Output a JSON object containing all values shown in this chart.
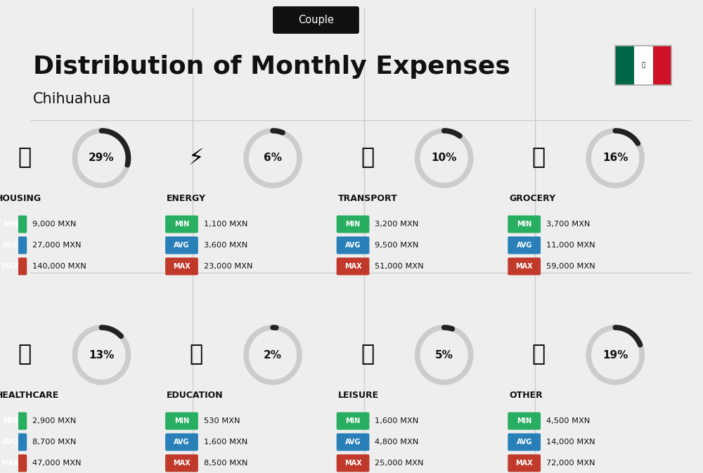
{
  "title": "Distribution of Monthly Expenses",
  "subtitle": "Chihuahua",
  "badge": "Couple",
  "bg_color": "#eeeeee",
  "categories": [
    {
      "name": "HOUSING",
      "pct": 29,
      "min": "9,000 MXN",
      "avg": "27,000 MXN",
      "max": "140,000 MXN",
      "col": 0,
      "row": 0
    },
    {
      "name": "ENERGY",
      "pct": 6,
      "min": "1,100 MXN",
      "avg": "3,600 MXN",
      "max": "23,000 MXN",
      "col": 1,
      "row": 0
    },
    {
      "name": "TRANSPORT",
      "pct": 10,
      "min": "3,200 MXN",
      "avg": "9,500 MXN",
      "max": "51,000 MXN",
      "col": 2,
      "row": 0
    },
    {
      "name": "GROCERY",
      "pct": 16,
      "min": "3,700 MXN",
      "avg": "11,000 MXN",
      "max": "59,000 MXN",
      "col": 3,
      "row": 0
    },
    {
      "name": "HEALTHCARE",
      "pct": 13,
      "min": "2,900 MXN",
      "avg": "8,700 MXN",
      "max": "47,000 MXN",
      "col": 0,
      "row": 1
    },
    {
      "name": "EDUCATION",
      "pct": 2,
      "min": "530 MXN",
      "avg": "1,600 MXN",
      "max": "8,500 MXN",
      "col": 1,
      "row": 1
    },
    {
      "name": "LEISURE",
      "pct": 5,
      "min": "1,600 MXN",
      "avg": "4,800 MXN",
      "max": "25,000 MXN",
      "col": 2,
      "row": 1
    },
    {
      "name": "OTHER",
      "pct": 19,
      "min": "4,500 MXN",
      "avg": "14,000 MXN",
      "max": "72,000 MXN",
      "col": 3,
      "row": 1
    }
  ],
  "color_min": "#27ae60",
  "color_avg": "#2980b9",
  "color_max": "#c0392b",
  "circle_dark": "#222222",
  "circle_gray": "#cccccc",
  "flag_green": "#006847",
  "flag_white": "#ffffff",
  "flag_red": "#ce1126"
}
